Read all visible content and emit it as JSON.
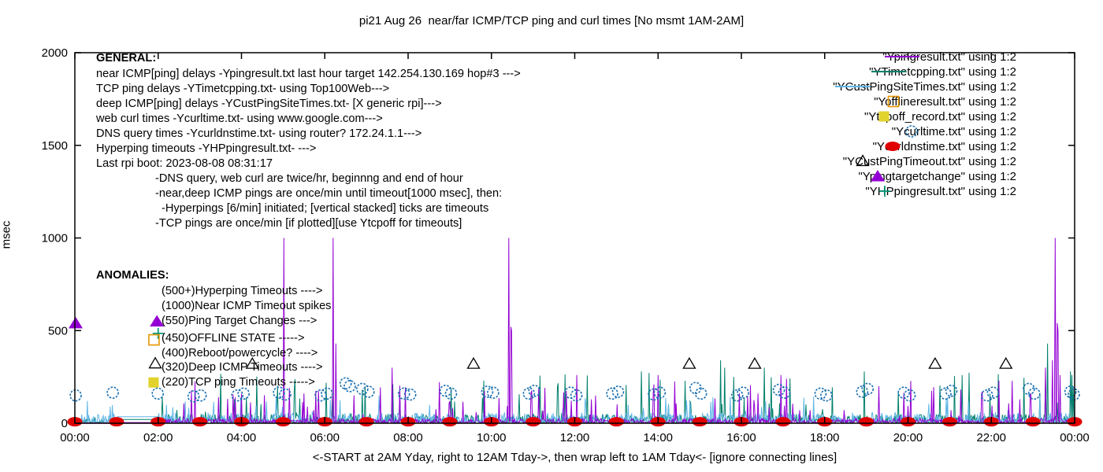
{
  "title": "pi21 Aug 26  near/far ICMP/TCP ping and curl times [No msmt 1AM-2AM]",
  "ylabel": "msec",
  "x_axis_note": "<-START at 2AM Yday, right to 12AM Tday->, then wrap left to 1AM Tday<- [ignore connecting lines]",
  "general": {
    "header": "GENERAL:",
    "lines": [
      "near ICMP[ping] delays -Ypingresult.txt last hour target 142.254.130.169 hop#3 --->",
      "TCP ping delays -YTimetcpping.txt- using Top100Web--->",
      "deep ICMP[ping] delays -YCustPingSiteTimes.txt- [X generic rpi]--->",
      "web curl times -Ycurltime.txt- using www.google.com--->",
      "DNS query times -Ycurldnstime.txt- using router? 172.24.1.1--->",
      "Hyperping timeouts -YHPpingresult.txt- --->",
      "Last rpi boot: 2023-08-08 08:31:17"
    ],
    "notes": [
      {
        "text": "-DNS query, web curl are twice/hr, beginnng and end of hour",
        "indent": 1
      },
      {
        "text": "-near,deep ICMP pings are once/min until timeout[1000 msec], then:",
        "indent": 1
      },
      {
        "text": "-Hyperpings [6/min] initiated; [vertical stacked] ticks are timeouts",
        "indent": 2
      },
      {
        "text": "-TCP pings are once/min [if plotted][use Ytcpoff for timeouts]",
        "indent": 1
      }
    ]
  },
  "anomalies": {
    "header": "ANOMALIES:",
    "lines": [
      "(500+)Hyperping Timeouts ---->",
      "(1000)Near ICMP Timeout spikes",
      "(550)Ping Target Changes --->",
      "(450)OFFLINE STATE ----->",
      "(400)Reboot/powercycle? ---->",
      "(320)Deep ICMP Timeouts ---->",
      "(220)TCP ping Timeouts ----->"
    ]
  },
  "legend": [
    {
      "label": "\"Ypingresult.txt\" using 1:2",
      "glyph": "line",
      "color": "#9400D3"
    },
    {
      "label": "\"YTimetcpping.txt\" using 1:2",
      "glyph": "line",
      "color": "#00806B"
    },
    {
      "label": "\"YCustPingSiteTimes.txt\" using 1:2",
      "glyph": "line",
      "color": "#62B6E7"
    },
    {
      "label": "\"Yofflineresult.txt\" using 1:2",
      "glyph": "square-open",
      "color": "#E69500"
    },
    {
      "label": "\"Ytcpoff_record.txt\" using 1:2",
      "glyph": "square-filled",
      "color": "#E2D22E"
    },
    {
      "label": "\"Ycurltime.txt\" using 1:2",
      "glyph": "circle-open",
      "color": "#1A6FB0"
    },
    {
      "label": "\"Ycurldnstime.txt\" using 1:2",
      "glyph": "circle-filled",
      "color": "#E00000"
    },
    {
      "label": "\"YCustPingTimeout.txt\" using 1:2",
      "glyph": "triangle-open",
      "color": "#000000"
    },
    {
      "label": "\"Ypingtargetchange\" using 1:2",
      "glyph": "triangle-filled",
      "color": "#9400D3"
    },
    {
      "label": "\"YHPpingresult.txt\" using 1:2",
      "glyph": "plus",
      "color": "#009478"
    }
  ],
  "chart_data": {
    "type": "line",
    "title": "pi21 Aug 26  near/far ICMP/TCP ping and curl times [No msmt 1AM-2AM]",
    "xlabel": "<-START at 2AM Yday, right to 12AM Tday->, then wrap left to 1AM Tday<- [ignore connecting lines]",
    "ylabel": "msec",
    "ylim": [
      0,
      2000
    ],
    "yticks": [
      0,
      500,
      1000,
      1500,
      2000
    ],
    "xlim_hours": [
      0,
      24
    ],
    "xticks_hours": [
      0,
      2,
      4,
      6,
      8,
      10,
      12,
      14,
      16,
      18,
      20,
      22,
      24
    ],
    "xtick_labels": [
      "00:00",
      "02:00",
      "04:00",
      "06:00",
      "08:00",
      "10:00",
      "12:00",
      "14:00",
      "16:00",
      "18:00",
      "20:00",
      "22:00",
      "00:00"
    ],
    "grid": false,
    "legend_position": "top-right",
    "no_measurement_window_hours": [
      1,
      2
    ],
    "series": [
      {
        "name": "\"YTimetcpping.txt\" using 1:2",
        "color": "#00806B",
        "style": "line",
        "noise": {
          "segments": [
            {
              "from": 0,
              "to": 1,
              "base": 30,
              "spike_p": 0.015,
              "spike_max": 70
            },
            {
              "from": 1,
              "to": 2,
              "flat": 20
            },
            {
              "from": 2,
              "to": 24,
              "base": 48,
              "spike_p": 0.05,
              "spike_max": 280
            }
          ]
        },
        "spikes_h_v": [
          [
            6.97,
            200
          ],
          [
            13.6,
            280
          ],
          [
            15.5,
            340
          ],
          [
            15.6,
            300
          ],
          [
            16.55,
            300
          ],
          [
            18.95,
            280
          ],
          [
            21.3,
            260
          ],
          [
            23.35,
            430
          ],
          [
            23.9,
            280
          ],
          [
            23.97,
            200
          ]
        ]
      },
      {
        "name": "\"YCustPingSiteTimes.txt\" using 1:2",
        "color": "#62B6E7",
        "style": "line",
        "noise": {
          "segments": [
            {
              "from": 0,
              "to": 1,
              "base": 50,
              "spike_p": 0.04,
              "spike_max": 120
            },
            {
              "from": 1,
              "to": 2,
              "flat": 35
            },
            {
              "from": 2,
              "to": 24,
              "base": 55,
              "spike_p": 0.04,
              "spike_max": 150
            }
          ]
        },
        "spikes_h_v": [
          [
            0.3,
            120
          ],
          [
            2.2,
            100
          ],
          [
            7.3,
            150
          ]
        ]
      },
      {
        "name": "\"Ypingresult.txt\" using 1:2",
        "color": "#9400D3",
        "style": "line",
        "noise": {
          "segments": [
            {
              "from": 0,
              "to": 1,
              "base": 0,
              "spike_p": 0,
              "spike_max": 0
            },
            {
              "from": 1,
              "to": 2,
              "flat": 4
            },
            {
              "from": 2,
              "to": 24,
              "base": 24,
              "spike_p": 0.05,
              "spike_max": 230
            }
          ]
        },
        "spikes_h_v": [
          [
            3.45,
            140
          ],
          [
            5.02,
            1000
          ],
          [
            5.5,
            160
          ],
          [
            6.2,
            1000
          ],
          [
            6.27,
            430
          ],
          [
            7.62,
            300
          ],
          [
            10.42,
            1000
          ],
          [
            10.46,
            520
          ],
          [
            10.48,
            500
          ],
          [
            12.05,
            260
          ],
          [
            14.0,
            260
          ],
          [
            16.95,
            260
          ],
          [
            17.08,
            240
          ],
          [
            19.3,
            200
          ],
          [
            23.3,
            300
          ],
          [
            23.47,
            340
          ],
          [
            23.53,
            1000
          ],
          [
            23.58,
            540
          ],
          [
            23.6,
            500
          ],
          [
            23.65,
            260
          ]
        ]
      }
    ],
    "markers": [
      {
        "name": "\"Ycurltime.txt\" using 1:2",
        "glyph": "circle-open",
        "color": "#1A6FB0",
        "points_h_v": [
          [
            0.02,
            150
          ],
          [
            0.91,
            165
          ],
          [
            1.99,
            160
          ],
          [
            2.85,
            145
          ],
          [
            3.02,
            150
          ],
          [
            3.9,
            150
          ],
          [
            4.05,
            160
          ],
          [
            4.9,
            165
          ],
          [
            5.05,
            155
          ],
          [
            5.9,
            150
          ],
          [
            6.05,
            160
          ],
          [
            6.5,
            215
          ],
          [
            6.6,
            200
          ],
          [
            6.9,
            185
          ],
          [
            7.05,
            170
          ],
          [
            7.9,
            160
          ],
          [
            8.05,
            155
          ],
          [
            8.9,
            175
          ],
          [
            9.03,
            160
          ],
          [
            9.9,
            170
          ],
          [
            10.04,
            165
          ],
          [
            10.9,
            160
          ],
          [
            11.03,
            175
          ],
          [
            11.9,
            165
          ],
          [
            12.04,
            150
          ],
          [
            12.9,
            160
          ],
          [
            13.04,
            170
          ],
          [
            13.9,
            155
          ],
          [
            14.04,
            165
          ],
          [
            14.9,
            190
          ],
          [
            15.03,
            160
          ],
          [
            15.9,
            150
          ],
          [
            16.04,
            165
          ],
          [
            16.9,
            180
          ],
          [
            17.03,
            165
          ],
          [
            17.9,
            160
          ],
          [
            18.04,
            150
          ],
          [
            18.9,
            170
          ],
          [
            19.03,
            185
          ],
          [
            19.9,
            165
          ],
          [
            20.04,
            150
          ],
          [
            20.9,
            160
          ],
          [
            21.04,
            175
          ],
          [
            21.9,
            150
          ],
          [
            22.04,
            165
          ],
          [
            22.9,
            185
          ],
          [
            23.03,
            160
          ],
          [
            23.9,
            170
          ],
          [
            23.98,
            155
          ]
        ]
      },
      {
        "name": "\"Ycurldnstime.txt\" using 1:2",
        "glyph": "circle-filled",
        "color": "#E00000",
        "points_h_v": [
          [
            0,
            8
          ],
          [
            1,
            8
          ],
          [
            2,
            8
          ],
          [
            3,
            8
          ],
          [
            4,
            8
          ],
          [
            5,
            8
          ],
          [
            6,
            8
          ],
          [
            7,
            8
          ],
          [
            8,
            8
          ],
          [
            9,
            8
          ],
          [
            10,
            8
          ],
          [
            11,
            8
          ],
          [
            12,
            8
          ],
          [
            13,
            8
          ],
          [
            14,
            8
          ],
          [
            15,
            8
          ],
          [
            16,
            8
          ],
          [
            17,
            8
          ],
          [
            18,
            8
          ],
          [
            19,
            8
          ],
          [
            20,
            8
          ],
          [
            21,
            8
          ],
          [
            22,
            8
          ],
          [
            23,
            8
          ],
          [
            24,
            8
          ]
        ]
      },
      {
        "name": "\"YCustPingTimeout.txt\" using 1:2",
        "glyph": "triangle-open",
        "color": "#000000",
        "points_h_v": [
          [
            4.26,
            320
          ],
          [
            9.57,
            320
          ],
          [
            14.75,
            320
          ],
          [
            16.32,
            320
          ],
          [
            20.65,
            320
          ],
          [
            22.35,
            320
          ]
        ]
      },
      {
        "name": "\"Ypingtargetchange\" using 1:2",
        "glyph": "triangle-filled",
        "color": "#9400D3",
        "points_h_v": [
          [
            0.02,
            540
          ]
        ]
      },
      {
        "name": "\"YHPpingresult.txt\" using 1:2",
        "glyph": "plus",
        "color": "#009478",
        "points_h_v": []
      }
    ],
    "anomaly_sample_markers": [
      {
        "glyph": "triangle-filled",
        "color": "#9400D3",
        "h": 1.97,
        "v": 550
      },
      {
        "glyph": "plus",
        "color": "#009478",
        "h": 2.0,
        "v": 485
      },
      {
        "glyph": "square-open",
        "color": "#E69500",
        "h": 1.9,
        "v": 450
      },
      {
        "glyph": "triangle-open",
        "color": "#000000",
        "h": 1.93,
        "v": 322
      },
      {
        "glyph": "square-filled",
        "color": "#E2D22E",
        "h": 1.89,
        "v": 220
      }
    ]
  }
}
